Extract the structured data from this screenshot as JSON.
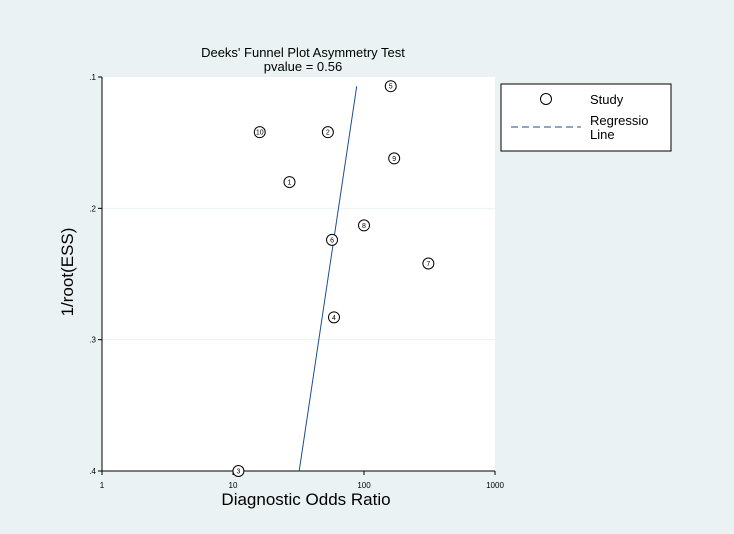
{
  "chart_data": {
    "type": "scatter",
    "title": "Deeks' Funnel Plot Asymmetry Test",
    "subtitle": "pvalue =   0.56",
    "xlabel": "Diagnostic Odds Ratio",
    "ylabel": "1/root(ESS)",
    "x_scale": "log",
    "xlim": [
      1,
      1000
    ],
    "ylim": [
      0.1,
      0.4
    ],
    "y_inverted": true,
    "x_ticks": [
      "1",
      "10",
      "100",
      "1000"
    ],
    "y_ticks": [
      ".1",
      ".2",
      ".3",
      ".4"
    ],
    "grid": "horizontal",
    "legend_position": "right",
    "legend": [
      {
        "label": "Study",
        "marker": "circle"
      },
      {
        "label": "Regressio",
        "label2": "Line",
        "marker": "dashed-line"
      }
    ],
    "points": [
      {
        "label": "1",
        "x": 27,
        "y": 0.18
      },
      {
        "label": "2",
        "x": 53,
        "y": 0.142
      },
      {
        "label": "3",
        "x": 11,
        "y": 0.4
      },
      {
        "label": "4",
        "x": 59,
        "y": 0.283
      },
      {
        "label": "5",
        "x": 160,
        "y": 0.107
      },
      {
        "label": "6",
        "x": 57,
        "y": 0.224
      },
      {
        "label": "7",
        "x": 310,
        "y": 0.242
      },
      {
        "label": "8",
        "x": 100,
        "y": 0.213
      },
      {
        "label": "9",
        "x": 170,
        "y": 0.162
      },
      {
        "label": "10",
        "x": 16,
        "y": 0.142
      }
    ],
    "regression_line": [
      {
        "x": 32,
        "y": 0.4
      },
      {
        "x": 88,
        "y": 0.107
      }
    ],
    "colors": {
      "background": "#eaf2f3",
      "plot_area": "#ffffff",
      "grid": "#eaf2f3",
      "regression": "#1f4e8c",
      "marker": "#000000"
    }
  }
}
